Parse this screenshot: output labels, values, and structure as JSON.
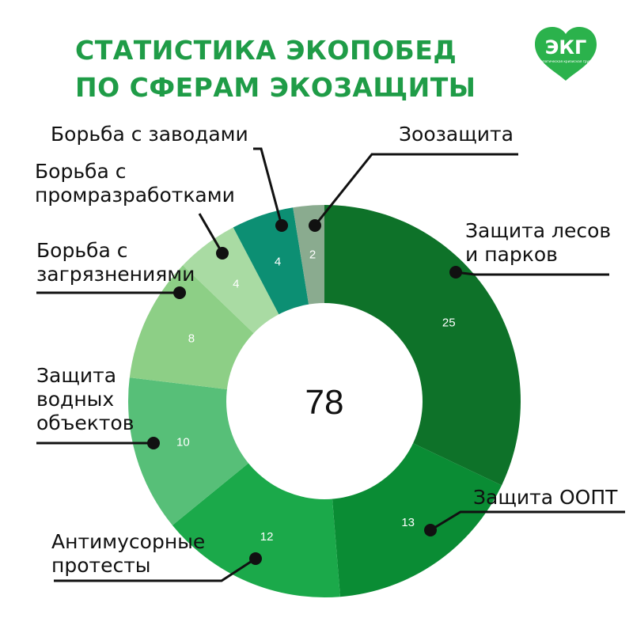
{
  "title_lines": [
    "СТАТИСТИКА ЭКОПОБЕД",
    "ПО СФЕРАМ ЭКОЗАЩИТЫ"
  ],
  "logo": {
    "text": "ЭКГ",
    "subtext": "Экологическая кризисная группа",
    "color": "#2bb24c"
  },
  "chart_data": {
    "type": "pie",
    "donut": true,
    "total": 78,
    "slices": [
      {
        "label": "Защита лесов\nи парков",
        "value": 25,
        "color": "#0e7229"
      },
      {
        "label": "Защита ООПТ",
        "value": 13,
        "color": "#0a8c34"
      },
      {
        "label": "Антимусорные\nпротесты",
        "value": 12,
        "color": "#1ba94a"
      },
      {
        "label": "Защита\nводных\nобъектов",
        "value": 10,
        "color": "#57bf78"
      },
      {
        "label": "Борьба с\nзагрязнениями",
        "value": 8,
        "color": "#8dcf86"
      },
      {
        "label": "Борьба с\nпромразработками",
        "value": 4,
        "color": "#a9dba3"
      },
      {
        "label": "Борьба с заводами",
        "value": 4,
        "color": "#0c8f73"
      },
      {
        "label": "Зоозащита",
        "value": 2,
        "color": "#8aab8f"
      }
    ]
  }
}
